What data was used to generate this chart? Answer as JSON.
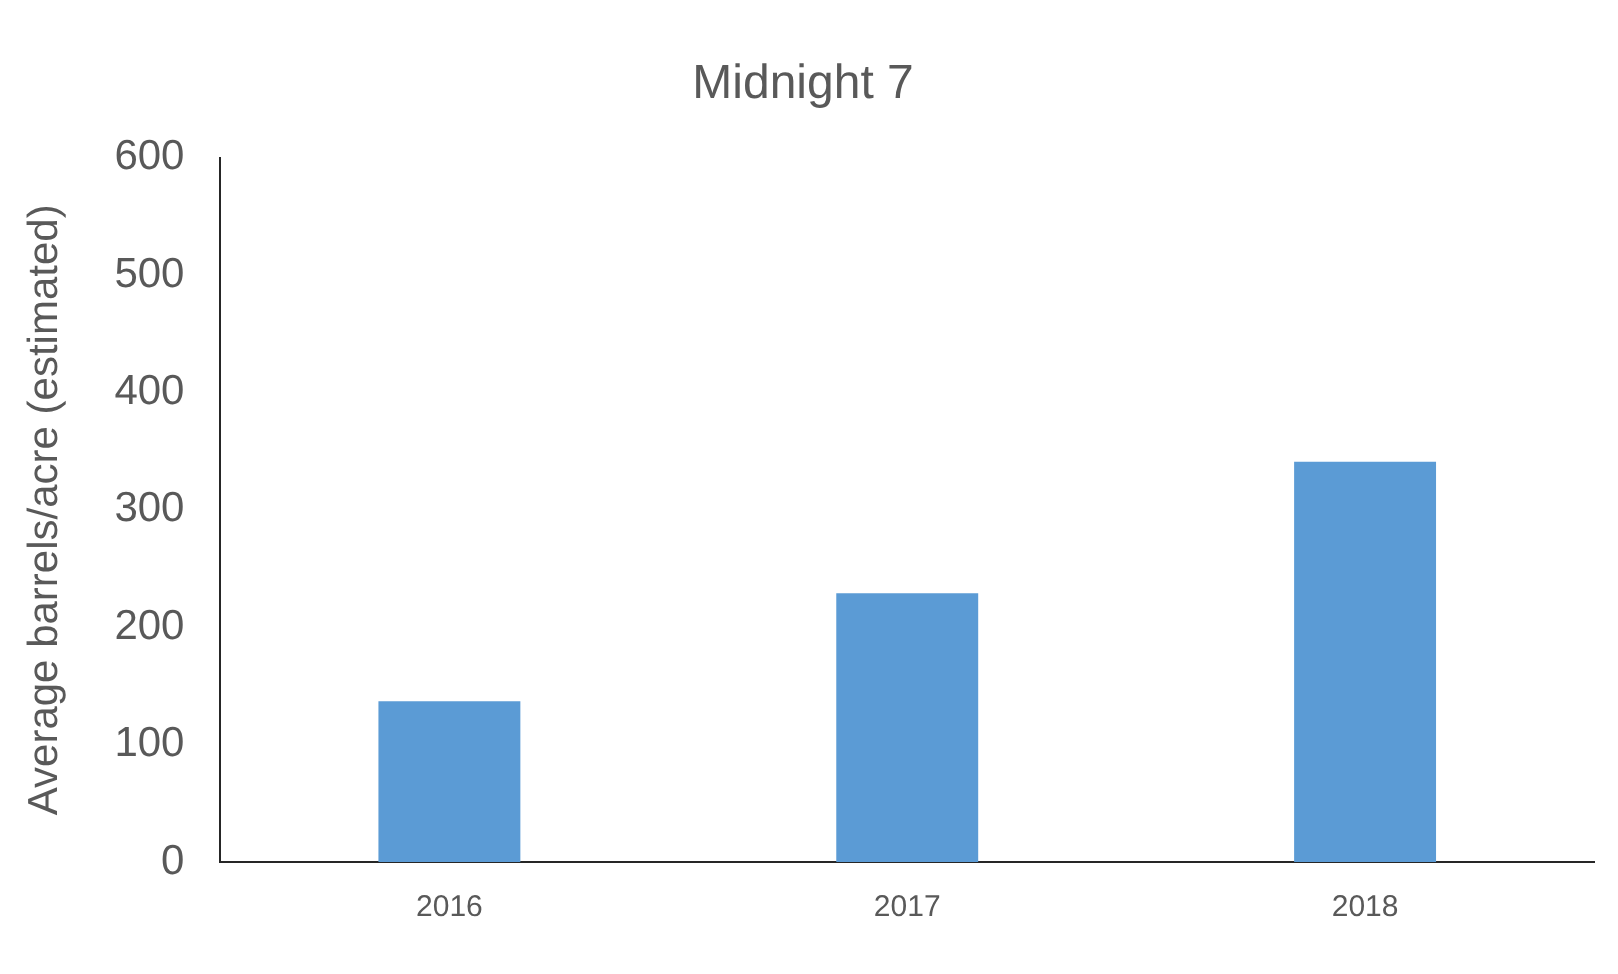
{
  "chart_data": {
    "type": "bar",
    "title": "Midnight 7",
    "ylabel": "Average barrels/acre (estimated)",
    "categories": [
      "2016",
      "2017",
      "2018"
    ],
    "values": [
      137,
      229,
      341
    ],
    "color": "#5b9bd5",
    "ylim": [
      0,
      600
    ],
    "yticks": [
      0,
      100,
      200,
      300,
      400,
      500,
      600
    ],
    "grid": false,
    "legend": false
  }
}
